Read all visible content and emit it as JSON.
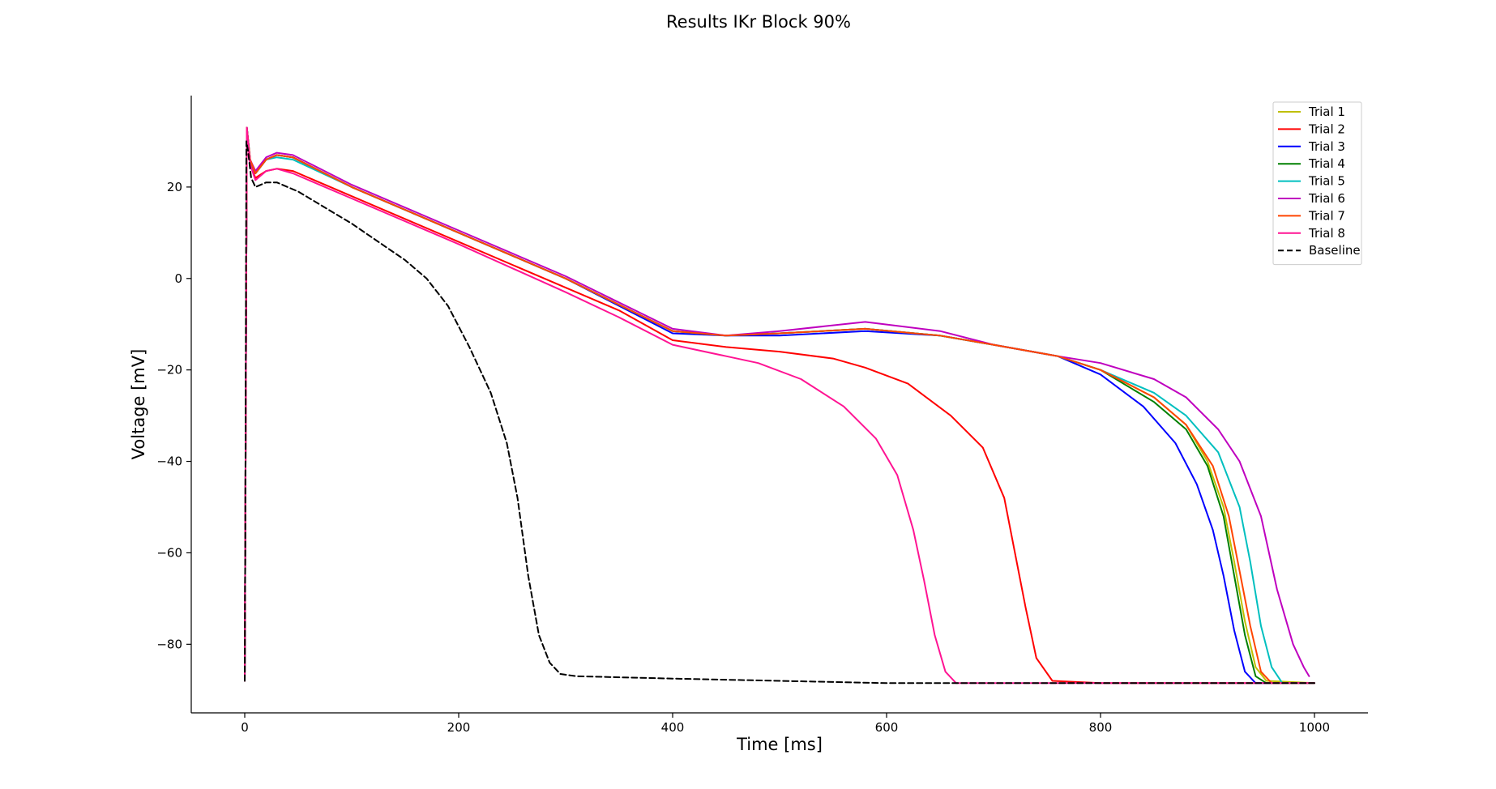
{
  "chart_data": {
    "type": "line",
    "title": "Results IKr Block 90%",
    "xlabel": "Time [ms]",
    "ylabel": "Voltage [mV]",
    "xlim": [
      -50,
      1050
    ],
    "ylim": [
      -95,
      40
    ],
    "xticks": [
      0,
      200,
      400,
      600,
      800,
      1000
    ],
    "xtick_labels": [
      "0",
      "200",
      "400",
      "600",
      "800",
      "1000"
    ],
    "yticks": [
      -80,
      -60,
      -40,
      -20,
      0,
      20
    ],
    "ytick_labels": [
      "−80",
      "−60",
      "−40",
      "−20",
      "0",
      "20"
    ],
    "grid": false,
    "legend_position": "top-right",
    "series": [
      {
        "name": "Trial 1",
        "color": "#bfbf00",
        "dash": "solid",
        "points": [
          [
            0,
            -88
          ],
          [
            0.5,
            -55
          ],
          [
            2,
            33
          ],
          [
            5,
            26
          ],
          [
            10,
            23
          ],
          [
            20,
            26
          ],
          [
            30,
            27
          ],
          [
            45,
            26.5
          ],
          [
            100,
            20
          ],
          [
            200,
            10
          ],
          [
            300,
            0
          ],
          [
            400,
            -11.5
          ],
          [
            450,
            -12.5
          ],
          [
            500,
            -12
          ],
          [
            580,
            -11
          ],
          [
            650,
            -12.5
          ],
          [
            700,
            -14.5
          ],
          [
            760,
            -17
          ],
          [
            800,
            -20
          ],
          [
            850,
            -26
          ],
          [
            880,
            -32
          ],
          [
            900,
            -40
          ],
          [
            915,
            -50
          ],
          [
            925,
            -62
          ],
          [
            935,
            -75
          ],
          [
            945,
            -85
          ],
          [
            955,
            -88
          ],
          [
            1000,
            -88.5
          ]
        ]
      },
      {
        "name": "Trial 2",
        "color": "#ff0000",
        "dash": "solid",
        "points": [
          [
            0,
            -88
          ],
          [
            0.5,
            -55
          ],
          [
            2,
            33
          ],
          [
            5,
            25
          ],
          [
            10,
            22
          ],
          [
            20,
            23.5
          ],
          [
            30,
            24
          ],
          [
            45,
            23.5
          ],
          [
            100,
            18
          ],
          [
            200,
            8
          ],
          [
            300,
            -2
          ],
          [
            350,
            -7
          ],
          [
            400,
            -13.5
          ],
          [
            450,
            -15
          ],
          [
            500,
            -16
          ],
          [
            550,
            -17.5
          ],
          [
            580,
            -19.5
          ],
          [
            620,
            -23
          ],
          [
            660,
            -30
          ],
          [
            690,
            -37
          ],
          [
            710,
            -48
          ],
          [
            720,
            -60
          ],
          [
            730,
            -72
          ],
          [
            740,
            -83
          ],
          [
            755,
            -88
          ],
          [
            800,
            -88.5
          ],
          [
            1000,
            -88.5
          ]
        ]
      },
      {
        "name": "Trial 3",
        "color": "#0000ff",
        "dash": "solid",
        "points": [
          [
            0,
            -88
          ],
          [
            0.5,
            -55
          ],
          [
            2,
            33
          ],
          [
            5,
            26
          ],
          [
            10,
            23
          ],
          [
            20,
            26
          ],
          [
            30,
            27
          ],
          [
            45,
            26.5
          ],
          [
            100,
            20
          ],
          [
            200,
            10
          ],
          [
            300,
            0
          ],
          [
            400,
            -12
          ],
          [
            450,
            -12.5
          ],
          [
            500,
            -12.5
          ],
          [
            580,
            -11.5
          ],
          [
            650,
            -12.5
          ],
          [
            700,
            -14.5
          ],
          [
            760,
            -17
          ],
          [
            800,
            -21
          ],
          [
            840,
            -28
          ],
          [
            870,
            -36
          ],
          [
            890,
            -45
          ],
          [
            905,
            -55
          ],
          [
            915,
            -65
          ],
          [
            925,
            -77
          ],
          [
            935,
            -86
          ],
          [
            945,
            -88.5
          ],
          [
            1000,
            -88.5
          ]
        ]
      },
      {
        "name": "Trial 4",
        "color": "#008000",
        "dash": "solid",
        "points": [
          [
            0,
            -88
          ],
          [
            0.5,
            -55
          ],
          [
            2,
            33
          ],
          [
            5,
            26
          ],
          [
            10,
            23
          ],
          [
            20,
            26
          ],
          [
            30,
            27
          ],
          [
            45,
            26.5
          ],
          [
            100,
            20
          ],
          [
            200,
            10
          ],
          [
            300,
            0
          ],
          [
            400,
            -11.5
          ],
          [
            450,
            -12.5
          ],
          [
            500,
            -12
          ],
          [
            580,
            -11
          ],
          [
            650,
            -12.5
          ],
          [
            700,
            -14.5
          ],
          [
            760,
            -17
          ],
          [
            800,
            -20
          ],
          [
            850,
            -27
          ],
          [
            880,
            -33
          ],
          [
            900,
            -41
          ],
          [
            915,
            -52
          ],
          [
            925,
            -65
          ],
          [
            935,
            -78
          ],
          [
            945,
            -87
          ],
          [
            955,
            -88.5
          ],
          [
            1000,
            -88.5
          ]
        ]
      },
      {
        "name": "Trial 5",
        "color": "#00bfbf",
        "dash": "solid",
        "points": [
          [
            0,
            -88
          ],
          [
            0.5,
            -55
          ],
          [
            2,
            33
          ],
          [
            5,
            26
          ],
          [
            10,
            23
          ],
          [
            20,
            26
          ],
          [
            30,
            26.5
          ],
          [
            45,
            26
          ],
          [
            100,
            20
          ],
          [
            200,
            10
          ],
          [
            300,
            0
          ],
          [
            400,
            -11.5
          ],
          [
            450,
            -12.5
          ],
          [
            500,
            -12
          ],
          [
            580,
            -11
          ],
          [
            650,
            -12.5
          ],
          [
            700,
            -14.5
          ],
          [
            760,
            -17
          ],
          [
            800,
            -20
          ],
          [
            850,
            -25
          ],
          [
            880,
            -30
          ],
          [
            910,
            -38
          ],
          [
            930,
            -50
          ],
          [
            940,
            -62
          ],
          [
            950,
            -76
          ],
          [
            960,
            -85
          ],
          [
            970,
            -88.5
          ],
          [
            1000,
            -88.5
          ]
        ]
      },
      {
        "name": "Trial 6",
        "color": "#bf00bf",
        "dash": "solid",
        "points": [
          [
            0,
            -88
          ],
          [
            0.5,
            -55
          ],
          [
            2,
            33
          ],
          [
            5,
            26
          ],
          [
            10,
            23.5
          ],
          [
            20,
            26.5
          ],
          [
            30,
            27.5
          ],
          [
            45,
            27
          ],
          [
            100,
            20.5
          ],
          [
            200,
            10.5
          ],
          [
            300,
            0.5
          ],
          [
            400,
            -11
          ],
          [
            450,
            -12.5
          ],
          [
            500,
            -11.5
          ],
          [
            580,
            -9.5
          ],
          [
            650,
            -11.5
          ],
          [
            700,
            -14.5
          ],
          [
            760,
            -17
          ],
          [
            800,
            -18.5
          ],
          [
            850,
            -22
          ],
          [
            880,
            -26
          ],
          [
            910,
            -33
          ],
          [
            930,
            -40
          ],
          [
            950,
            -52
          ],
          [
            965,
            -68
          ],
          [
            980,
            -80
          ],
          [
            990,
            -85
          ],
          [
            995,
            -87
          ]
        ]
      },
      {
        "name": "Trial 7",
        "color": "#ff4500",
        "dash": "solid",
        "points": [
          [
            0,
            -88
          ],
          [
            0.5,
            -55
          ],
          [
            2,
            33
          ],
          [
            5,
            26
          ],
          [
            10,
            23
          ],
          [
            20,
            26
          ],
          [
            30,
            27
          ],
          [
            45,
            26.5
          ],
          [
            100,
            20
          ],
          [
            200,
            10
          ],
          [
            300,
            0
          ],
          [
            400,
            -11.5
          ],
          [
            450,
            -12.5
          ],
          [
            500,
            -12
          ],
          [
            580,
            -11
          ],
          [
            650,
            -12.5
          ],
          [
            700,
            -14.5
          ],
          [
            760,
            -17
          ],
          [
            800,
            -20
          ],
          [
            850,
            -26
          ],
          [
            880,
            -32
          ],
          [
            905,
            -41
          ],
          [
            920,
            -52
          ],
          [
            930,
            -64
          ],
          [
            940,
            -76
          ],
          [
            950,
            -86
          ],
          [
            960,
            -88.5
          ],
          [
            1000,
            -88.5
          ]
        ]
      },
      {
        "name": "Trial 8",
        "color": "#ff1493",
        "dash": "solid",
        "points": [
          [
            0,
            -88
          ],
          [
            0.5,
            -55
          ],
          [
            2,
            33
          ],
          [
            5,
            25
          ],
          [
            10,
            21.5
          ],
          [
            20,
            23.5
          ],
          [
            30,
            24
          ],
          [
            45,
            23
          ],
          [
            100,
            17.5
          ],
          [
            200,
            7.5
          ],
          [
            300,
            -3
          ],
          [
            350,
            -8.5
          ],
          [
            400,
            -14.5
          ],
          [
            450,
            -17
          ],
          [
            480,
            -18.5
          ],
          [
            520,
            -22
          ],
          [
            560,
            -28
          ],
          [
            590,
            -35
          ],
          [
            610,
            -43
          ],
          [
            625,
            -55
          ],
          [
            635,
            -66
          ],
          [
            645,
            -78
          ],
          [
            655,
            -86
          ],
          [
            665,
            -88.5
          ],
          [
            700,
            -88.5
          ],
          [
            1000,
            -88.5
          ]
        ]
      },
      {
        "name": "Baseline",
        "color": "#000000",
        "dash": "dashed",
        "points": [
          [
            0,
            -88
          ],
          [
            0.5,
            -55
          ],
          [
            1.5,
            30
          ],
          [
            3,
            28
          ],
          [
            6,
            22
          ],
          [
            10,
            20
          ],
          [
            20,
            21
          ],
          [
            30,
            21
          ],
          [
            50,
            19
          ],
          [
            100,
            12
          ],
          [
            150,
            4
          ],
          [
            170,
            0
          ],
          [
            190,
            -6
          ],
          [
            210,
            -15
          ],
          [
            230,
            -25
          ],
          [
            245,
            -36
          ],
          [
            255,
            -48
          ],
          [
            265,
            -65
          ],
          [
            275,
            -78
          ],
          [
            285,
            -84
          ],
          [
            295,
            -86.5
          ],
          [
            310,
            -87
          ],
          [
            400,
            -87.5
          ],
          [
            600,
            -88.5
          ],
          [
            1000,
            -88.5
          ]
        ]
      }
    ]
  }
}
